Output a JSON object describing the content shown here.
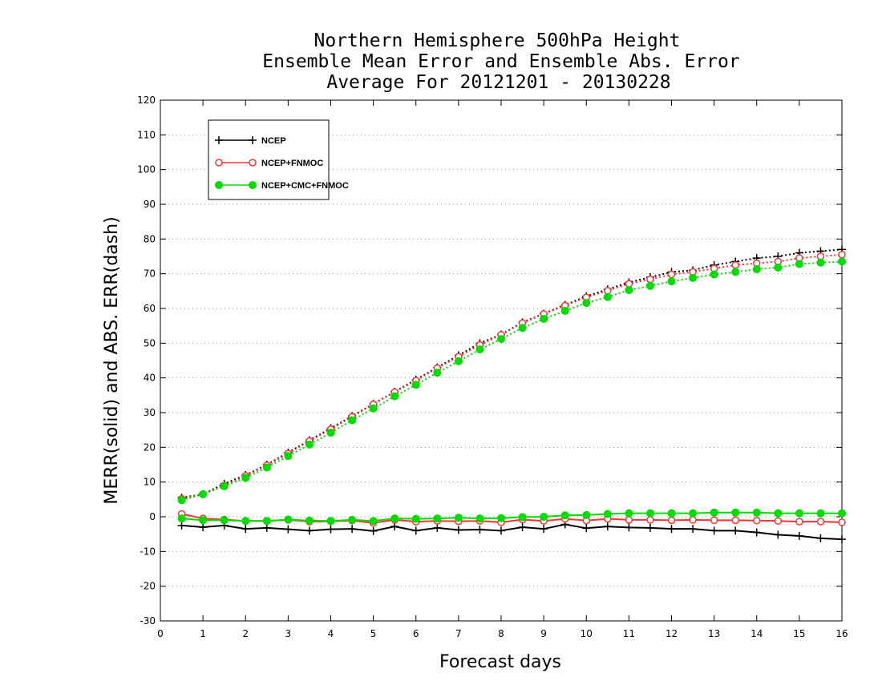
{
  "chart_data": {
    "type": "line",
    "title": [
      "Northern Hemisphere 500hPa Height",
      "Ensemble Mean Error and Ensemble Abs. Error",
      "Average For 20121201 - 20130228"
    ],
    "xlabel": "Forecast days",
    "ylabel": "MERR(solid) and ABS. ERR(dash)",
    "xlim": [
      0,
      16
    ],
    "ylim": [
      -30,
      120
    ],
    "xticks": [
      0,
      1,
      2,
      3,
      4,
      5,
      6,
      7,
      8,
      9,
      10,
      11,
      12,
      13,
      14,
      15,
      16
    ],
    "yticks": [
      -30,
      -20,
      -10,
      0,
      10,
      20,
      30,
      40,
      50,
      60,
      70,
      80,
      90,
      100,
      110,
      120
    ],
    "grid": "horizontal dotted",
    "legend_position": "top-left",
    "x": [
      0.5,
      1,
      1.5,
      2,
      2.5,
      3,
      3.5,
      4,
      4.5,
      5,
      5.5,
      6,
      6.5,
      7,
      7.5,
      8,
      8.5,
      9,
      9.5,
      10,
      10.5,
      11,
      11.5,
      12,
      12.5,
      13,
      13.5,
      14,
      14.5,
      15,
      15.5,
      16
    ],
    "series": [
      {
        "name": "NCEP",
        "color": "#000000",
        "marker": "plus",
        "merr": [
          -2.5,
          -3,
          -2.5,
          -3.5,
          -3.2,
          -3.6,
          -4,
          -3.6,
          -3.5,
          -4.1,
          -2.8,
          -4,
          -3.2,
          -3.8,
          -3.7,
          -4,
          -3,
          -3.5,
          -2.2,
          -3.3,
          -2.8,
          -3.1,
          -3.2,
          -3.5,
          -3.5,
          -4,
          -4,
          -4.5,
          -5.2,
          -5.5,
          -6.2,
          -6.5
        ],
        "abs_err": [
          5.5,
          6.5,
          9.5,
          12,
          15,
          18.5,
          22,
          25.5,
          29,
          32.5,
          36,
          39.5,
          43,
          46.5,
          50,
          52.5,
          56,
          58.5,
          61,
          63.5,
          65.5,
          67.5,
          69,
          70.5,
          71,
          72.5,
          73.5,
          74.5,
          75,
          76,
          76.5,
          77
        ]
      },
      {
        "name": "NCEP+FNMOC",
        "color": "#ff3333",
        "marker": "open-circle",
        "merr": [
          0.8,
          -0.5,
          -0.8,
          -1.2,
          -1.2,
          -0.9,
          -1.4,
          -1.3,
          -1.1,
          -1.8,
          -0.9,
          -1.4,
          -1.2,
          -1.3,
          -1.2,
          -1.6,
          -0.8,
          -1.2,
          -0.6,
          -1.1,
          -0.6,
          -0.9,
          -0.9,
          -1,
          -0.9,
          -1,
          -1,
          -1.1,
          -1.2,
          -1.4,
          -1.4,
          -1.6
        ],
        "abs_err": [
          5.2,
          6.5,
          9,
          11.8,
          14.8,
          18.2,
          21.8,
          25.2,
          28.8,
          32.4,
          35.9,
          39.2,
          42.8,
          46.1,
          49.5,
          52.4,
          55.8,
          58.4,
          60.8,
          63.2,
          65.1,
          67.1,
          68.4,
          69.8,
          70.5,
          71.5,
          72.5,
          73,
          73.5,
          74.5,
          75,
          75.5
        ]
      },
      {
        "name": "NCEP+CMC+FNMOC",
        "color": "#00dd00",
        "marker": "filled-circle",
        "merr": [
          -0.5,
          -1,
          -1,
          -1.2,
          -1.2,
          -0.8,
          -1.1,
          -1.2,
          -0.9,
          -1.2,
          -0.5,
          -0.6,
          -0.5,
          -0.3,
          -0.5,
          -0.4,
          -0.1,
          0,
          0.4,
          0.5,
          0.8,
          1,
          1,
          1,
          1,
          1.2,
          1.2,
          1.2,
          1,
          1,
          1,
          1
        ],
        "abs_err": [
          4.8,
          6.5,
          8.8,
          11.2,
          14.2,
          17.5,
          20.8,
          24.2,
          27.8,
          31.2,
          34.7,
          38,
          41.5,
          44.8,
          48.2,
          51.2,
          54.4,
          57,
          59.3,
          61.6,
          63.3,
          65.3,
          66.5,
          67.8,
          68.8,
          69.8,
          70.5,
          71.3,
          71.8,
          72.8,
          73.2,
          73.5
        ]
      }
    ]
  }
}
